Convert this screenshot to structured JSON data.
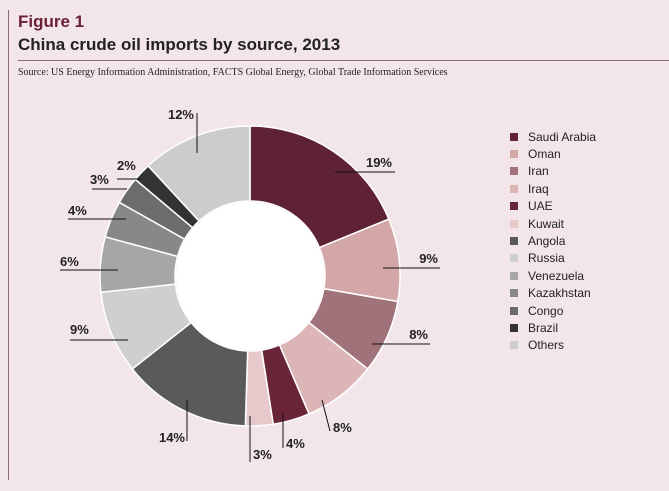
{
  "figure": {
    "label": "Figure 1",
    "title": "China crude oil imports by source, 2013",
    "source": "Source: US Energy Information Administration, FACTS Global Energy, Global Trade Information Services"
  },
  "chart_data": {
    "type": "pie",
    "title": "China crude oil imports by source, 2013",
    "hole": "donut",
    "categories": [
      "Saudi Arabia",
      "Oman",
      "Iran",
      "Iraq",
      "UAE",
      "Kuwait",
      "Angola",
      "Russia",
      "Venezuela",
      "Kazakhstan",
      "Congo",
      "Brazil",
      "Others"
    ],
    "values": [
      19,
      9,
      8,
      8,
      4,
      3,
      14,
      9,
      6,
      4,
      3,
      2,
      12
    ],
    "labels": [
      "19%",
      "9%",
      "8%",
      "8%",
      "4%",
      "3%",
      "14%",
      "9%",
      "6%",
      "4%",
      "3%",
      "2%",
      "12%"
    ],
    "colors": [
      "#5e2234",
      "#d3a6a7",
      "#a07279",
      "#dcb5b6",
      "#6a2437",
      "#e7c9cb",
      "#5a5a5a",
      "#cfcfcf",
      "#a6a6a6",
      "#888888",
      "#6c6c6c",
      "#333333",
      "#cccccc"
    ],
    "legend": "right"
  }
}
